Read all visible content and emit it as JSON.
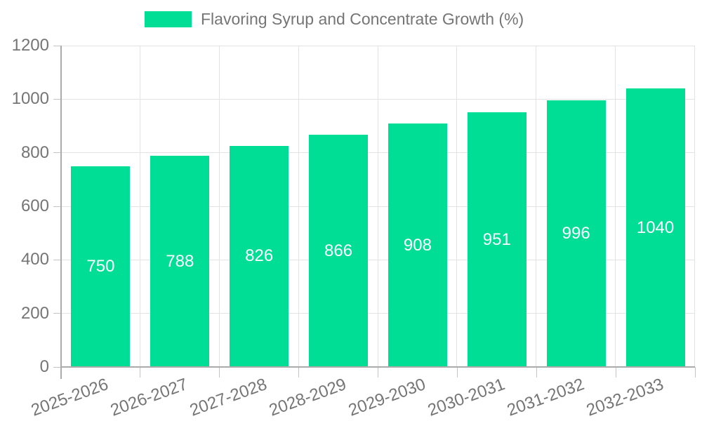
{
  "colors": {
    "bar": "#00DD94",
    "grid": "#e3e3e3",
    "axis": "#ababab",
    "tick_mark": "#c4c4c4",
    "tick_text": "#757575",
    "bar_value_text": "#ffffff",
    "background": "#ffffff"
  },
  "chart_data": {
    "type": "bar",
    "title": "Flavoring Syrup and Concentrate Growth (%)",
    "categories": [
      "2025-2026",
      "2026-2027",
      "2027-2028",
      "2028-2029",
      "2029-2030",
      "2030-2031",
      "2031-2032",
      "2032-2033"
    ],
    "values": [
      750,
      788,
      826,
      866,
      908,
      951,
      996,
      1040
    ],
    "xlabel": "",
    "ylabel": "",
    "ylim": [
      0,
      1200
    ],
    "yticks": [
      0,
      200,
      400,
      600,
      800,
      1000,
      1200
    ],
    "grid": true,
    "legend_position": "top",
    "value_labels": "inside-center",
    "x_label_rotation_deg": -20
  }
}
